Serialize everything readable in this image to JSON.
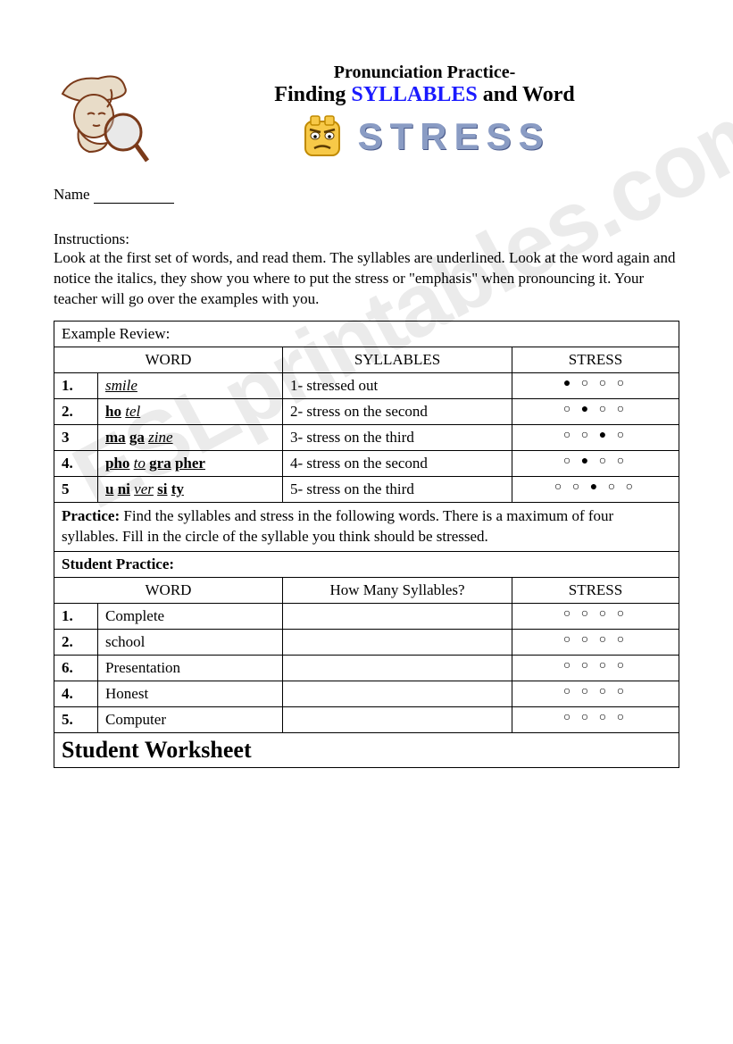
{
  "watermark": "ESLprintables.com",
  "header": {
    "line1": "Pronunciation Practice-",
    "line2_pre": "Finding ",
    "line2_syllables": "SYLLABLES",
    "line2_post": " and Word",
    "stress_word": "STRESS",
    "colors": {
      "syllables_color": "#1a1aff",
      "stress_color": "#8a9cc4",
      "stress_shadow": "#4a5a8a"
    }
  },
  "name_label": "Name",
  "instructions": {
    "label": "Instructions:",
    "body": "Look at the first set of words, and read them. The syllables are underlined. Look at the word again and notice the italics, they show you where to put the stress or \"emphasis\" when pronouncing it. Your teacher will go over the examples with you."
  },
  "example_section": {
    "title": "Example Review:",
    "columns": [
      "WORD",
      "SYLLABLES",
      "STRESS"
    ],
    "rows": [
      {
        "num": "1.",
        "word_html": "<u><i>smile</i></u>",
        "syll": "1- stressed out",
        "circles_total": 4,
        "stressed_index": 0
      },
      {
        "num": "2.",
        "word_html": "<u><b>ho</b></u> <u><i>tel</i></u>",
        "syll": "2- stress on the second",
        "circles_total": 4,
        "stressed_index": 1
      },
      {
        "num": "3",
        "word_html": "<u><b>ma</b></u> <u><b>ga</b></u> <u><i>zine</i></u>",
        "syll": "3- stress on the third",
        "circles_total": 4,
        "stressed_index": 2
      },
      {
        "num": "4.",
        "word_html": "<u><b>pho</b></u> <u><i>to</i></u> <u><b>gra</b></u> <u><b>pher</b></u>",
        "syll": "4- stress on the second",
        "circles_total": 4,
        "stressed_index": 1
      },
      {
        "num": "5",
        "word_html": "<u><b>u</b></u> <u><b>ni</b></u> <u><i>ver</i></u> <u><b>si</b></u> <u><b>ty</b></u>",
        "syll": "5- stress on the third",
        "circles_total": 5,
        "stressed_index": 2
      }
    ]
  },
  "practice_note": {
    "bold": "Practice:",
    "text": " Find the syllables and stress in the following words. There is a maximum of four syllables. Fill in the circle of the syllable you think should be stressed."
  },
  "student_section": {
    "title": "Student Practice:",
    "columns": [
      "WORD",
      "How Many Syllables?",
      "STRESS"
    ],
    "rows": [
      {
        "num": "1.",
        "word": "Complete",
        "circles_total": 4
      },
      {
        "num": "2.",
        "word": "school",
        "circles_total": 4
      },
      {
        "num": "6.",
        "word": "Presentation",
        "circles_total": 4
      },
      {
        "num": "4.",
        "word": "Honest",
        "circles_total": 4
      },
      {
        "num": "5.",
        "word": "Computer",
        "circles_total": 4
      }
    ]
  },
  "footer": "Student Worksheet",
  "icons": {
    "detective_colors": {
      "outline": "#7a3a1a",
      "fill": "#e8dcc8",
      "glass": "#cccccc"
    },
    "emoji_colors": {
      "body": "#f7c948",
      "outline": "#c08a00",
      "eyes": "#ffffff",
      "brow": "#5a3a00"
    }
  }
}
